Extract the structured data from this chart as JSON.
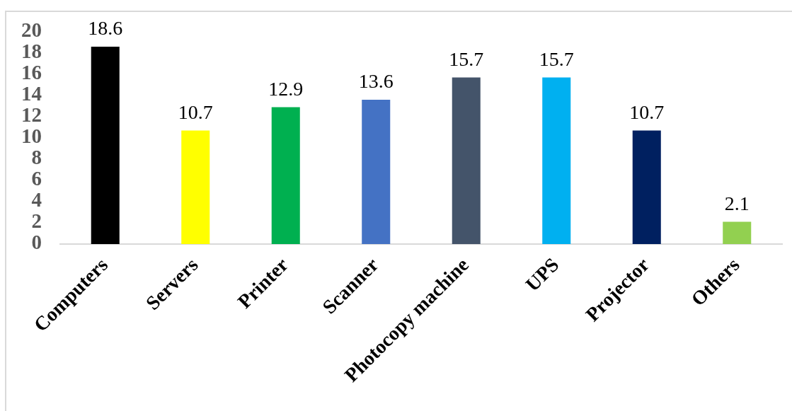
{
  "chart_data": {
    "type": "bar",
    "categories": [
      "Computers",
      "Servers",
      "Printer",
      "Scanner",
      "Photocopy machine",
      "UPS",
      "Projector",
      "Others"
    ],
    "values": [
      18.6,
      10.7,
      12.9,
      13.6,
      15.7,
      15.7,
      10.7,
      2.1
    ],
    "colors": [
      "#000000",
      "#ffff00",
      "#00b050",
      "#4472c4",
      "#44546a",
      "#00b0f0",
      "#002060",
      "#92d050"
    ],
    "ylim": [
      0,
      20
    ],
    "yticks": [
      0,
      2,
      4,
      6,
      8,
      10,
      12,
      14,
      16,
      18,
      20
    ],
    "data_labels": true
  }
}
